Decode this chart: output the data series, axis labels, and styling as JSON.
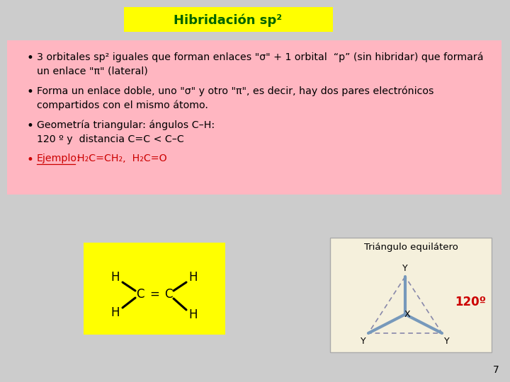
{
  "title": "Hibridación sp²",
  "title_bg": "#ffff00",
  "title_color": "#006400",
  "slide_bg": "#cccccc",
  "text_box_bg": "#ffb6c1",
  "bullet1_line1": "3 orbitales sp² iguales que forman enlaces \"σ\" + 1 orbital  “p” (sin hibridar) que formará",
  "bullet1_line2": "un enlace \"π\" (lateral)",
  "bullet2_line1": "Forma un enlace doble, uno \"σ\" y otro \"π\", es decir, hay dos pares electrónicos",
  "bullet2_line2": "compartidos con el mismo átomo.",
  "bullet3_line1": "Geometría triangular: ángulos C–H:",
  "bullet3_line2": "120 º y  distancia C=C < C–C",
  "bullet4_color": "#cc0000",
  "bullet4_ejemplo": "Ejemplo:",
  "bullet4_rest": "H₂C=CH₂,  H₂C=O",
  "mol_box_bg": "#ffff00",
  "page_number": "7",
  "triangle_label": "Triángulo equilátero",
  "angle_label": "120º",
  "angle_color": "#cc0000",
  "triangle_box_bg": "#f5f0dc",
  "blue_bond": "#7799bb"
}
